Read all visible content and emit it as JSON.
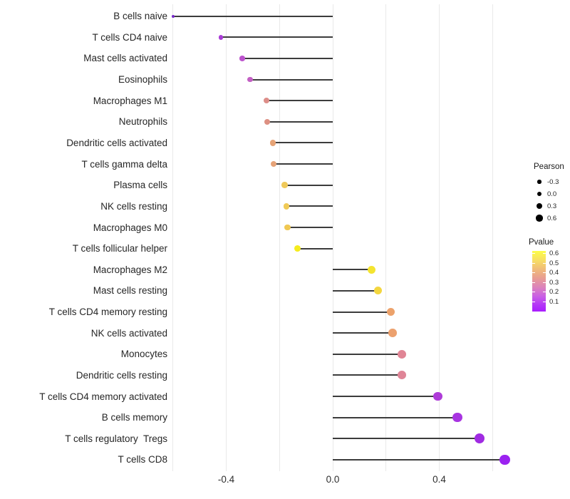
{
  "background_color": "#ffffff",
  "chart_data": {
    "type": "scatter",
    "variant": "lollipop",
    "title": "",
    "xlabel": "",
    "ylabel": "",
    "x_axis": {
      "range": [
        -0.66,
        0.72
      ],
      "tick_values": [
        -0.4,
        0.0,
        0.4
      ],
      "tick_labels": [
        "-0.4",
        "0.0",
        "0.4"
      ],
      "gridline_values": [
        -0.6,
        -0.4,
        -0.2,
        0.0,
        0.2,
        0.4,
        0.6
      ],
      "grid_on": true
    },
    "stem_baseline_x": 0.0,
    "points": [
      {
        "label": "B cells naive",
        "pearson": -0.6,
        "pvalue_est": 0.01,
        "color": "#7627C9"
      },
      {
        "label": "T cells CD4 naive",
        "pearson": -0.42,
        "pvalue_est": 0.1,
        "color": "#A93BD6"
      },
      {
        "label": "Mast cells activated",
        "pearson": -0.34,
        "pvalue_est": 0.14,
        "color": "#BC53CD"
      },
      {
        "label": "Eosinophils",
        "pearson": -0.31,
        "pvalue_est": 0.16,
        "color": "#C35FC4"
      },
      {
        "label": "Macrophages M1",
        "pearson": -0.25,
        "pvalue_est": 0.31,
        "color": "#DD8E89"
      },
      {
        "label": "Neutrophils",
        "pearson": -0.245,
        "pvalue_est": 0.32,
        "color": "#DD9082"
      },
      {
        "label": "Dendritic cells activated",
        "pearson": -0.225,
        "pvalue_est": 0.37,
        "color": "#E6A376"
      },
      {
        "label": "T cells gamma delta",
        "pearson": -0.222,
        "pvalue_est": 0.37,
        "color": "#E6A378"
      },
      {
        "label": "Plasma cells",
        "pearson": -0.181,
        "pvalue_est": 0.46,
        "color": "#EFC95A"
      },
      {
        "label": "NK cells resting",
        "pearson": -0.174,
        "pvalue_est": 0.47,
        "color": "#F0CA56"
      },
      {
        "label": "Macrophages M0",
        "pearson": -0.17,
        "pvalue_est": 0.47,
        "color": "#F0C852"
      },
      {
        "label": "T cells follicular helper",
        "pearson": -0.132,
        "pvalue_est": 0.6,
        "color": "#F5EC1E"
      },
      {
        "label": "Macrophages M2",
        "pearson": 0.147,
        "pvalue_est": 0.56,
        "color": "#F4E430"
      },
      {
        "label": "Mast cells resting",
        "pearson": 0.169,
        "pvalue_est": 0.51,
        "color": "#F3D63F"
      },
      {
        "label": "T cells CD4 memory resting",
        "pearson": 0.218,
        "pvalue_est": 0.37,
        "color": "#ECA26B"
      },
      {
        "label": "NK cells activated",
        "pearson": 0.225,
        "pvalue_est": 0.37,
        "color": "#ECA16E"
      },
      {
        "label": "Monocytes",
        "pearson": 0.26,
        "pvalue_est": 0.28,
        "color": "#E08595"
      },
      {
        "label": "Dendritic cells resting",
        "pearson": 0.26,
        "pvalue_est": 0.28,
        "color": "#DF8597"
      },
      {
        "label": "T cells CD4 memory activated",
        "pearson": 0.394,
        "pvalue_est": 0.11,
        "color": "#AE3BD8"
      },
      {
        "label": "B cells memory",
        "pearson": 0.468,
        "pvalue_est": 0.09,
        "color": "#A834E1"
      },
      {
        "label": "T cells regulatory  Tregs",
        "pearson": 0.55,
        "pvalue_est": 0.06,
        "color": "#A02BE2"
      },
      {
        "label": "T cells CD8",
        "pearson": 0.647,
        "pvalue_est": 0.03,
        "color": "#9B22F0"
      }
    ],
    "legends": {
      "pearson_size": {
        "title": "Pearson",
        "entries": [
          {
            "label": "-0.3",
            "value": -0.3
          },
          {
            "label": "0.0",
            "value": 0.0
          },
          {
            "label": "0.3",
            "value": 0.3
          },
          {
            "label": "0.6",
            "value": 0.6
          }
        ],
        "dot_color": "#000000"
      },
      "pvalue_color": {
        "title": "Pvalue",
        "tick_labels": [
          "0.6",
          "0.5",
          "0.4",
          "0.3",
          "0.2",
          "0.1"
        ],
        "gradient_top_color": "#FCFD49",
        "gradient_bottom_color": "#AA1DFE"
      }
    }
  }
}
